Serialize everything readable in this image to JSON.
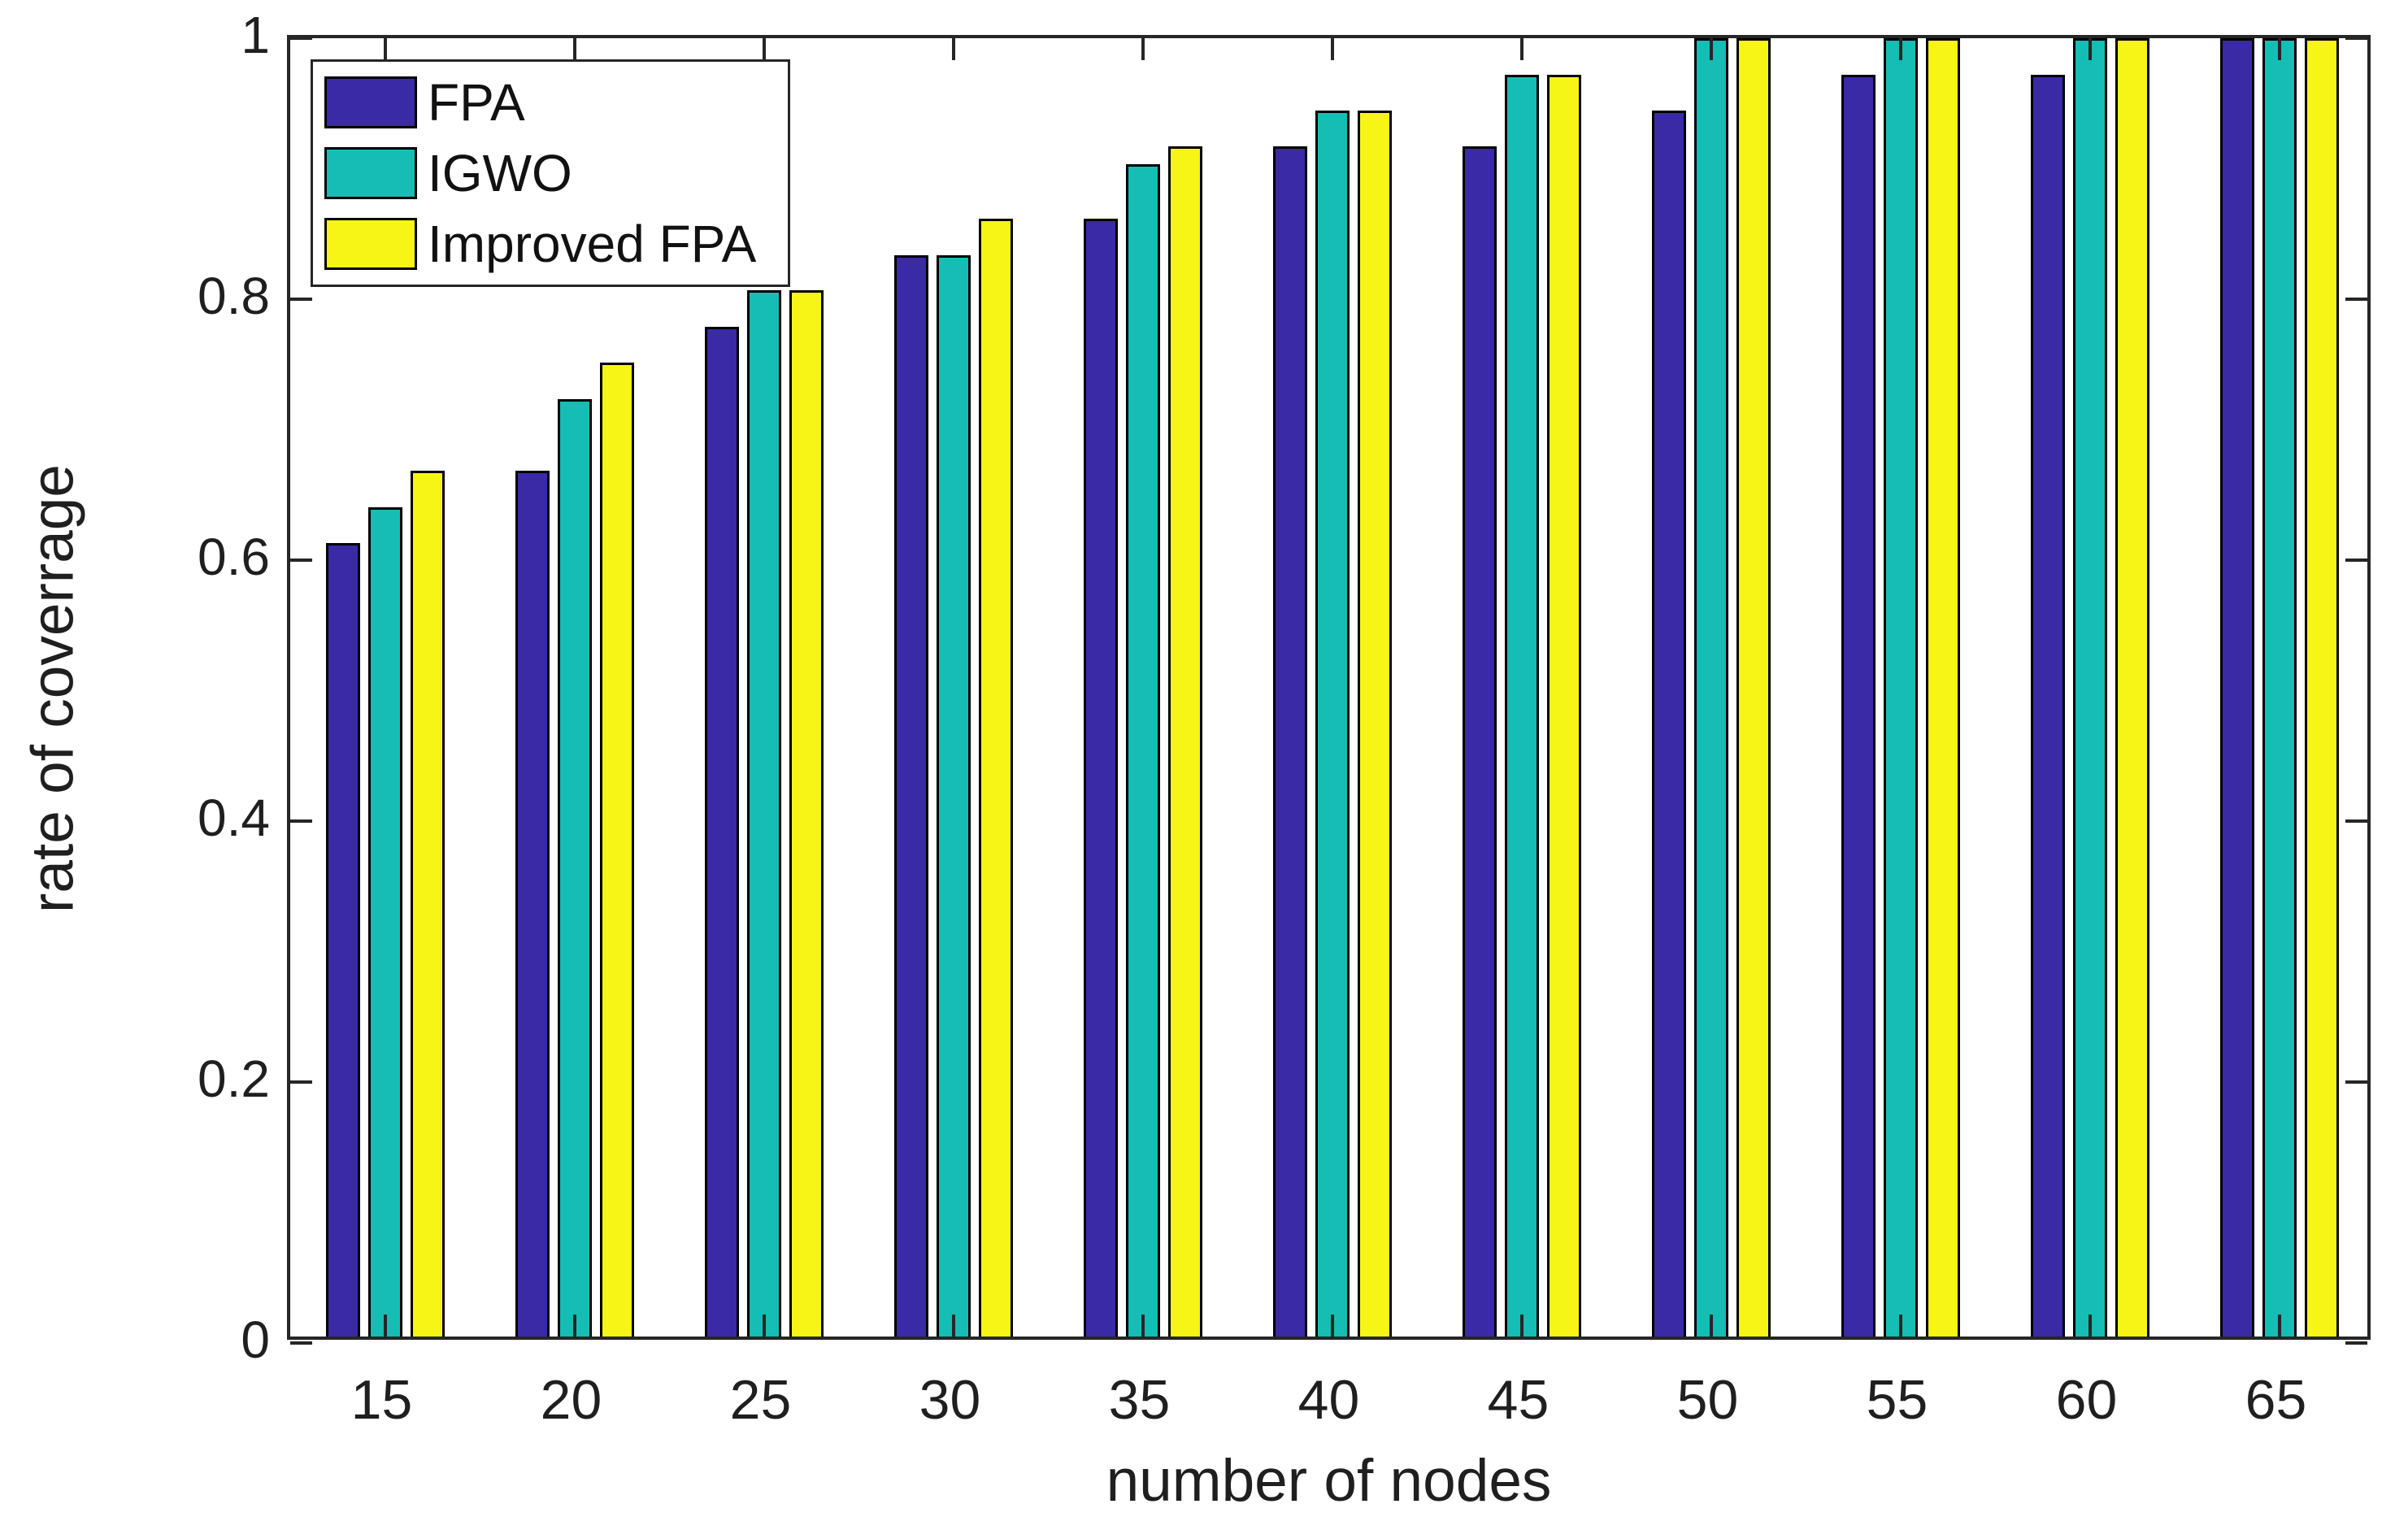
{
  "figure": {
    "background": "#ffffff",
    "axis_color": "#262626",
    "text_color": "#1f1f1f"
  },
  "chart_data": {
    "type": "bar",
    "title": "",
    "xlabel": "number of nodes",
    "ylabel": "rate of coverrage",
    "categories": [
      "15",
      "20",
      "25",
      "30",
      "35",
      "40",
      "45",
      "50",
      "55",
      "60",
      "65"
    ],
    "series": [
      {
        "name": "FPA",
        "color": "#3B2AA5",
        "values": [
          0.611,
          0.667,
          0.778,
          0.833,
          0.861,
          0.917,
          0.917,
          0.944,
          0.972,
          0.972,
          1.0
        ]
      },
      {
        "name": "IGWO",
        "color": "#16BDB4",
        "values": [
          0.639,
          0.722,
          0.806,
          0.833,
          0.903,
          0.944,
          0.972,
          1.0,
          1.0,
          1.0,
          1.0
        ]
      },
      {
        "name": "Improved FPA",
        "color": "#F7F515",
        "values": [
          0.667,
          0.75,
          0.806,
          0.861,
          0.917,
          0.944,
          0.972,
          1.0,
          1.0,
          1.0,
          1.0
        ]
      }
    ],
    "ylim": [
      0,
      1
    ],
    "yticks": [
      0,
      0.2,
      0.4,
      0.6,
      0.8,
      1
    ],
    "ytick_labels": [
      "0",
      "0.2",
      "0.4",
      "0.6",
      "0.8",
      "1"
    ],
    "grid": false,
    "legend_position": "top-left",
    "bar_edge_color": "#000000",
    "axis_color": "#262626"
  }
}
